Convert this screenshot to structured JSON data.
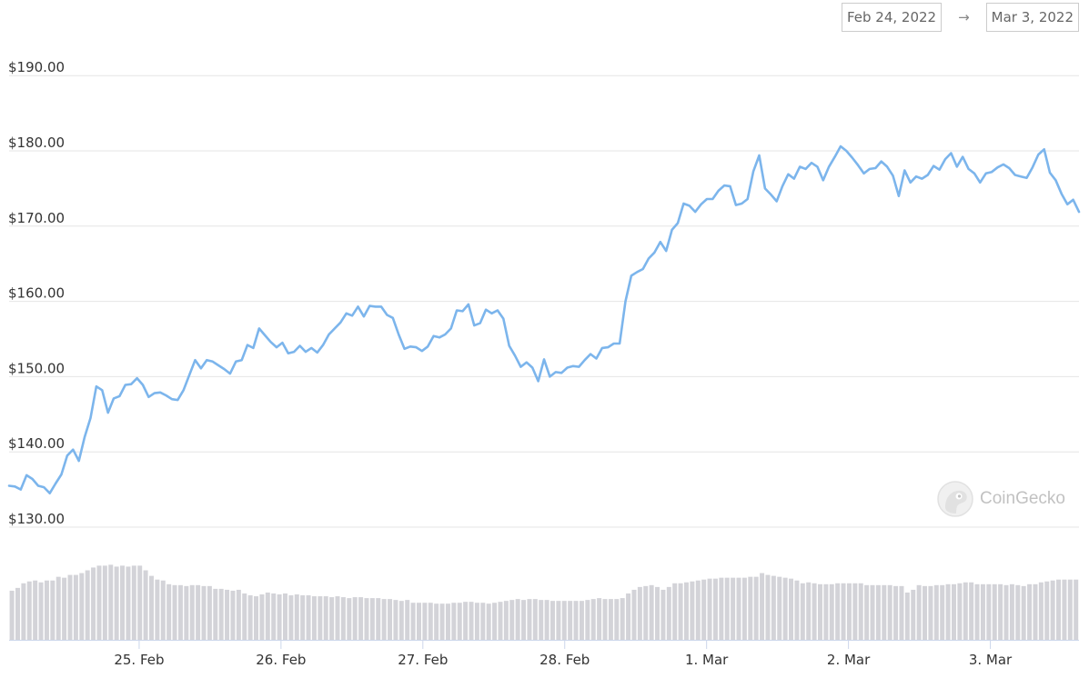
{
  "date_range": {
    "start": "Feb 24, 2022",
    "arrow": "→",
    "end": "Mar 3, 2022"
  },
  "watermark": {
    "label": "CoinGecko",
    "icon": "gecko-logo-icon"
  },
  "chart_data": {
    "type": "line",
    "title": "",
    "xlabel": "",
    "ylabel": "",
    "y_ticks": [
      "$130.00",
      "$140.00",
      "$150.00",
      "$160.00",
      "$170.00",
      "$180.00",
      "$190.00"
    ],
    "ylim": [
      127,
      195
    ],
    "x_ticks": [
      "25. Feb",
      "26. Feb",
      "27. Feb",
      "28. Feb",
      "1. Mar",
      "2. Mar",
      "3. Mar"
    ],
    "grid": true,
    "line_color": "#7cb5ec",
    "volume_color": "#d3d3d8",
    "x_start": "2022-02-24T02:00",
    "x_end": "2022-03-03T15:00",
    "series": [
      {
        "values": [
          135.5,
          135.4,
          135.0,
          136.9,
          136.4,
          135.5,
          135.3,
          134.5,
          135.8,
          137.0,
          139.5,
          140.3,
          138.8,
          142.0,
          144.5,
          148.7,
          148.2,
          145.2,
          147.1,
          147.4,
          148.9,
          149.0,
          149.8,
          148.9,
          147.3,
          147.8,
          147.9,
          147.5,
          147.0,
          146.9,
          148.2,
          150.2,
          152.2,
          151.1,
          152.2,
          152.0,
          151.5,
          151.0,
          150.4,
          152.0,
          152.2,
          154.2,
          153.8,
          156.4,
          155.5,
          154.6,
          153.9,
          154.5,
          153.1,
          153.3,
          154.1,
          153.3,
          153.8,
          153.2,
          154.2,
          155.6,
          156.4,
          157.2,
          158.4,
          158.1,
          159.3,
          158.0,
          159.4,
          159.3,
          159.3,
          158.2,
          157.8,
          155.6,
          153.7,
          154.0,
          153.9,
          153.4,
          154.0,
          155.4,
          155.2,
          155.6,
          156.4,
          158.8,
          158.7,
          159.6,
          156.8,
          157.1,
          158.9,
          158.4,
          158.8,
          157.7,
          154.1,
          152.8,
          151.3,
          151.9,
          151.2,
          149.4,
          152.3,
          150.0,
          150.6,
          150.5,
          151.2,
          151.4,
          151.3,
          152.2,
          153.0,
          152.4,
          153.8,
          153.9,
          154.4,
          154.4,
          160.0,
          163.4,
          163.9,
          164.3,
          165.7,
          166.5,
          167.9,
          166.7,
          169.5,
          170.4,
          173.0,
          172.7,
          171.9,
          172.9,
          173.6,
          173.6,
          174.7,
          175.4,
          175.3,
          172.8,
          173.0,
          173.6,
          177.3,
          179.4,
          175.0,
          174.2,
          173.3,
          175.3,
          176.9,
          176.3,
          177.9,
          177.6,
          178.4,
          177.9,
          176.1,
          177.9,
          179.2,
          180.6,
          180.0,
          179.1,
          178.1,
          177.0,
          177.6,
          177.7,
          178.6,
          177.9,
          176.7,
          174.0,
          177.4,
          175.8,
          176.6,
          176.3,
          176.8,
          178.0,
          177.5,
          178.9,
          179.7,
          177.9,
          179.2,
          177.6,
          177.0,
          175.8,
          177.0,
          177.2,
          177.8,
          178.2,
          177.7,
          176.8,
          176.6,
          176.4,
          177.8,
          179.5,
          180.2,
          177.1,
          176.1,
          174.3,
          172.9,
          173.5,
          171.9
        ]
      }
    ],
    "volume": [
      0.53,
      0.56,
      0.61,
      0.63,
      0.64,
      0.62,
      0.64,
      0.64,
      0.68,
      0.67,
      0.7,
      0.7,
      0.72,
      0.75,
      0.78,
      0.8,
      0.8,
      0.81,
      0.79,
      0.8,
      0.79,
      0.8,
      0.8,
      0.75,
      0.69,
      0.65,
      0.64,
      0.6,
      0.59,
      0.59,
      0.58,
      0.59,
      0.59,
      0.58,
      0.58,
      0.55,
      0.55,
      0.54,
      0.53,
      0.54,
      0.5,
      0.48,
      0.47,
      0.49,
      0.51,
      0.5,
      0.49,
      0.5,
      0.48,
      0.49,
      0.48,
      0.48,
      0.47,
      0.47,
      0.47,
      0.46,
      0.47,
      0.46,
      0.45,
      0.46,
      0.46,
      0.45,
      0.45,
      0.45,
      0.44,
      0.44,
      0.43,
      0.42,
      0.43,
      0.4,
      0.4,
      0.4,
      0.4,
      0.39,
      0.39,
      0.39,
      0.4,
      0.4,
      0.41,
      0.41,
      0.4,
      0.4,
      0.39,
      0.4,
      0.41,
      0.42,
      0.43,
      0.44,
      0.43,
      0.44,
      0.44,
      0.43,
      0.43,
      0.42,
      0.42,
      0.42,
      0.42,
      0.42,
      0.42,
      0.43,
      0.44,
      0.45,
      0.44,
      0.44,
      0.44,
      0.45,
      0.5,
      0.54,
      0.57,
      0.58,
      0.59,
      0.57,
      0.54,
      0.57,
      0.61,
      0.61,
      0.62,
      0.63,
      0.64,
      0.65,
      0.66,
      0.66,
      0.67,
      0.67,
      0.67,
      0.67,
      0.67,
      0.68,
      0.68,
      0.72,
      0.7,
      0.69,
      0.68,
      0.67,
      0.66,
      0.64,
      0.61,
      0.62,
      0.61,
      0.6,
      0.6,
      0.6,
      0.61,
      0.61,
      0.61,
      0.61,
      0.61,
      0.59,
      0.59,
      0.59,
      0.59,
      0.59,
      0.58,
      0.58,
      0.51,
      0.54,
      0.59,
      0.58,
      0.58,
      0.59,
      0.59,
      0.6,
      0.6,
      0.61,
      0.62,
      0.62,
      0.6,
      0.6,
      0.6,
      0.6,
      0.6,
      0.59,
      0.6,
      0.59,
      0.58,
      0.6,
      0.6,
      0.62,
      0.63,
      0.64,
      0.65,
      0.65,
      0.65,
      0.65
    ]
  }
}
